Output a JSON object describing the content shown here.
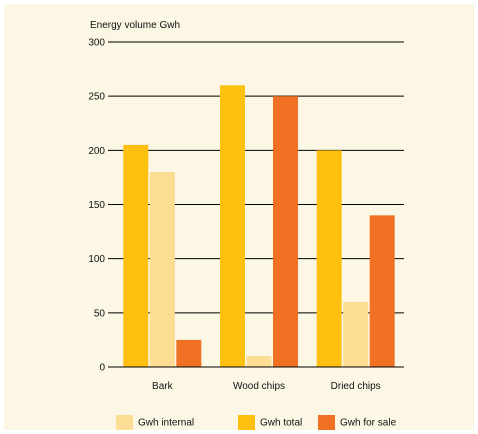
{
  "chart_data": {
    "type": "bar",
    "title": "",
    "ylabel": "Energy volume Gwh",
    "xlabel": "",
    "categories": [
      "Bark",
      "Wood chips",
      "Dried chips"
    ],
    "series": [
      {
        "name": "Gwh total",
        "color": "#fdc00f",
        "values": [
          205,
          260,
          200
        ]
      },
      {
        "name": "Gwh internal",
        "color": "#fddc94",
        "values": [
          180,
          10,
          60
        ]
      },
      {
        "name": "Gwh for sale",
        "color": "#f07124",
        "values": [
          25,
          250,
          140
        ]
      }
    ],
    "ylim": [
      0,
      300
    ],
    "yticks": [
      0,
      50,
      100,
      150,
      200,
      250,
      300
    ],
    "grid": true,
    "legend_order": [
      "Gwh internal",
      "Gwh total",
      "Gwh for sale"
    ],
    "legend_position": "bottom"
  }
}
